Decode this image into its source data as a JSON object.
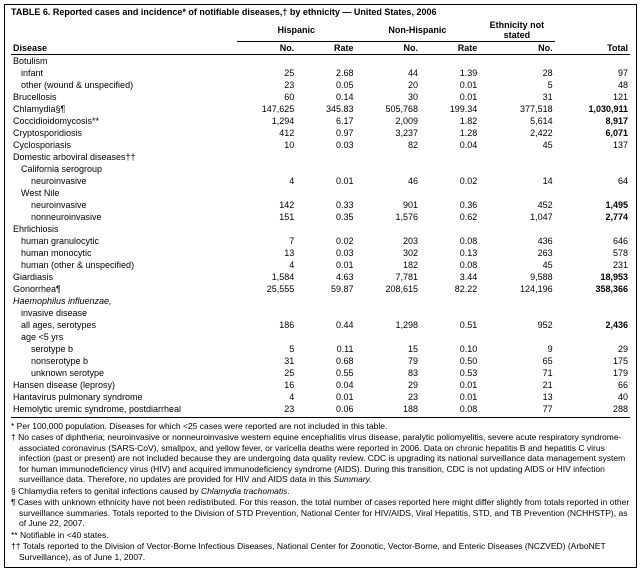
{
  "title": "TABLE 6. Reported cases and incidence* of notifiable diseases,† by ethnicity — United States, 2006",
  "headers": {
    "hispanic": "Hispanic",
    "nonhispanic": "Non-Hispanic",
    "ethnicity_ns": "Ethnicity not stated",
    "disease": "Disease",
    "no": "No.",
    "rate": "Rate",
    "total": "Total"
  },
  "rows": [
    {
      "label": "Botulism",
      "indent": 0,
      "italic": false,
      "hn": "",
      "hr": "",
      "nn": "",
      "nr": "",
      "en": "",
      "tot": ""
    },
    {
      "label": "infant",
      "indent": 1,
      "hn": "25",
      "hr": "2.68",
      "nn": "44",
      "nr": "1.39",
      "en": "28",
      "tot": "97"
    },
    {
      "label": "other (wound & unspecified)",
      "indent": 1,
      "hn": "23",
      "hr": "0.05",
      "nn": "20",
      "nr": "0.01",
      "en": "5",
      "tot": "48"
    },
    {
      "label": "Brucellosis",
      "indent": 0,
      "hn": "60",
      "hr": "0.14",
      "nn": "30",
      "nr": "0.01",
      "en": "31",
      "tot": "121"
    },
    {
      "label": "Chlamydia§¶",
      "indent": 0,
      "hn": "147,625",
      "hr": "345.83",
      "nn": "505,768",
      "nr": "199.34",
      "en": "377,518",
      "tot": "1,030,911",
      "bold": true
    },
    {
      "label": "Coccidioidomycosis**",
      "indent": 0,
      "hn": "1,294",
      "hr": "6.17",
      "nn": "2,009",
      "nr": "1.82",
      "en": "5,614",
      "tot": "8,917",
      "bold": true
    },
    {
      "label": "Cryptosporidiosis",
      "indent": 0,
      "hn": "412",
      "hr": "0.97",
      "nn": "3,237",
      "nr": "1.28",
      "en": "2,422",
      "tot": "6,071",
      "bold": true
    },
    {
      "label": "Cyclosporiasis",
      "indent": 0,
      "hn": "10",
      "hr": "0.03",
      "nn": "82",
      "nr": "0.04",
      "en": "45",
      "tot": "137"
    },
    {
      "label": "Domestic arboviral diseases††",
      "indent": 0,
      "hn": "",
      "hr": "",
      "nn": "",
      "nr": "",
      "en": "",
      "tot": ""
    },
    {
      "label": "California serogroup",
      "indent": 1,
      "hn": "",
      "hr": "",
      "nn": "",
      "nr": "",
      "en": "",
      "tot": ""
    },
    {
      "label": "neuroinvasive",
      "indent": 2,
      "hn": "4",
      "hr": "0.01",
      "nn": "46",
      "nr": "0.02",
      "en": "14",
      "tot": "64"
    },
    {
      "label": "West Nile",
      "indent": 1,
      "hn": "",
      "hr": "",
      "nn": "",
      "nr": "",
      "en": "",
      "tot": ""
    },
    {
      "label": "neuroinvasive",
      "indent": 2,
      "hn": "142",
      "hr": "0.33",
      "nn": "901",
      "nr": "0.36",
      "en": "452",
      "tot": "1,495",
      "bold": true
    },
    {
      "label": "nonneuroinvasive",
      "indent": 2,
      "hn": "151",
      "hr": "0.35",
      "nn": "1,576",
      "nr": "0.62",
      "en": "1,047",
      "tot": "2,774",
      "bold": true
    },
    {
      "label": "Ehrlichiosis",
      "indent": 0,
      "hn": "",
      "hr": "",
      "nn": "",
      "nr": "",
      "en": "",
      "tot": ""
    },
    {
      "label": "human granulocytic",
      "indent": 1,
      "hn": "7",
      "hr": "0.02",
      "nn": "203",
      "nr": "0.08",
      "en": "436",
      "tot": "646"
    },
    {
      "label": "human monocytic",
      "indent": 1,
      "hn": "13",
      "hr": "0.03",
      "nn": "302",
      "nr": "0.13",
      "en": "263",
      "tot": "578"
    },
    {
      "label": "human (other & unspecified)",
      "indent": 1,
      "hn": "4",
      "hr": "0.01",
      "nn": "182",
      "nr": "0.08",
      "en": "45",
      "tot": "231"
    },
    {
      "label": "Giardiasis",
      "indent": 0,
      "hn": "1,584",
      "hr": "4.63",
      "nn": "7,781",
      "nr": "3.44",
      "en": "9,588",
      "tot": "18,953",
      "bold": true
    },
    {
      "label": "Gonorrhea¶",
      "indent": 0,
      "hn": "25,555",
      "hr": "59.87",
      "nn": "208,615",
      "nr": "82.22",
      "en": "124,196",
      "tot": "358,366",
      "bold": true
    },
    {
      "label": "Haemophilus influenzae,",
      "indent": 0,
      "italic": true,
      "hn": "",
      "hr": "",
      "nn": "",
      "nr": "",
      "en": "",
      "tot": ""
    },
    {
      "label": "invasive disease",
      "indent": 1,
      "hn": "",
      "hr": "",
      "nn": "",
      "nr": "",
      "en": "",
      "tot": ""
    },
    {
      "label": "all ages, serotypes",
      "indent": 1,
      "hn": "186",
      "hr": "0.44",
      "nn": "1,298",
      "nr": "0.51",
      "en": "952",
      "tot": "2,436",
      "bold": true
    },
    {
      "label": "age <5 yrs",
      "indent": 1,
      "hn": "",
      "hr": "",
      "nn": "",
      "nr": "",
      "en": "",
      "tot": ""
    },
    {
      "label": "serotype b",
      "indent": 2,
      "hn": "5",
      "hr": "0.11",
      "nn": "15",
      "nr": "0.10",
      "en": "9",
      "tot": "29"
    },
    {
      "label": "nonserotype b",
      "indent": 2,
      "hn": "31",
      "hr": "0.68",
      "nn": "79",
      "nr": "0.50",
      "en": "65",
      "tot": "175"
    },
    {
      "label": "unknown serotype",
      "indent": 2,
      "hn": "25",
      "hr": "0.55",
      "nn": "83",
      "nr": "0.53",
      "en": "71",
      "tot": "179"
    },
    {
      "label": "Hansen disease (leprosy)",
      "indent": 0,
      "hn": "16",
      "hr": "0.04",
      "nn": "29",
      "nr": "0.01",
      "en": "21",
      "tot": "66"
    },
    {
      "label": "Hantavirus pulmonary syndrome",
      "indent": 0,
      "hn": "4",
      "hr": "0.01",
      "nn": "23",
      "nr": "0.01",
      "en": "13",
      "tot": "40"
    },
    {
      "label": "Hemolytic uremic syndrome, postdiarrheal",
      "indent": 0,
      "hn": "23",
      "hr": "0.06",
      "nn": "188",
      "nr": "0.08",
      "en": "77",
      "tot": "288",
      "last": true
    }
  ],
  "footnotes": [
    "* Per 100,000 population. Diseases for which <25 cases were reported are not included in this table.",
    "† No cases of diphtheria; neuroinvasive or nonneuroinvasive western equine encephalitis virus disease, paralytic poliomyelitis, severe acute respiratory syndrome-associated coronavirus (SARS-CoV), smallpox, and yellow fever, or varicella deaths were reported in 2006. Data on chronic hepatitis B and hepatitis C virus infection (past or present) are not included because they are undergoing data quality review. CDC is upgrading its national surveillance data management system for human immunodeficiency virus (HIV) and acquired immunodeficiency syndrome (AIDS). During this transition, CDC is not updating AIDS or HIV infection surveillance data. Therefore, no updates are provided for HIV and AIDS data in this Summary.",
    "§ Chlamydia refers to genital infections caused by Chlamydia trachomatis.",
    "¶ Cases with unknown ethnicity have not been redistributed. For this reason, the total number of cases reported here might differ slightly from totals reported in other surveillance summaries. Totals reported to the Division of STD Prevention, National Center for HIV/AIDS, Viral Hepatitis, STD, and TB Prevention (NCHHSTP), as of June 22, 2007.",
    "** Notifiable in <40 states.",
    "†† Totals reported to the Division of Vector-Borne Infectious Diseases, National Center for Zoonotic, Vector-Borne, and Enteric Diseases (NCZVED) (ArboNET Surveillance), as of June 1, 2007."
  ]
}
